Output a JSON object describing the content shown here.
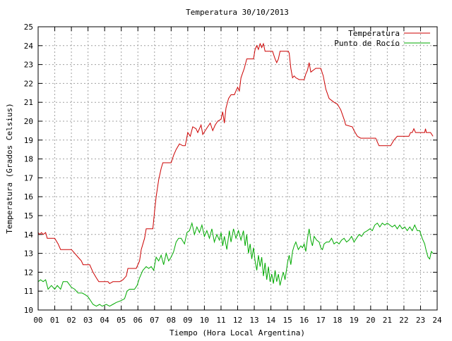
{
  "chart_data": {
    "type": "line",
    "title": "Temperatura 30/10/2013",
    "xlabel": "Tiempo (Hora Local Argentina)",
    "ylabel": "Temperatura (Grados Celsius)",
    "xlim": [
      0,
      24
    ],
    "ylim": [
      10,
      25
    ],
    "xticks": [
      "00",
      "01",
      "02",
      "03",
      "04",
      "05",
      "06",
      "07",
      "08",
      "09",
      "10",
      "11",
      "12",
      "13",
      "14",
      "15",
      "16",
      "17",
      "18",
      "19",
      "20",
      "21",
      "22",
      "23",
      "24"
    ],
    "yticks": [
      "10",
      "11",
      "12",
      "13",
      "14",
      "15",
      "16",
      "17",
      "18",
      "19",
      "20",
      "21",
      "22",
      "23",
      "24",
      "25"
    ],
    "grid": true,
    "legend_position": "top-right",
    "series": [
      {
        "name": "Temperatura",
        "color": "#cc0000",
        "points": [
          [
            0,
            14.1
          ],
          [
            0.1,
            14.0
          ],
          [
            0.2,
            14.1
          ],
          [
            0.3,
            14.0
          ],
          [
            0.45,
            14.1
          ],
          [
            0.55,
            13.8
          ],
          [
            1.0,
            13.8
          ],
          [
            1.2,
            13.5
          ],
          [
            1.35,
            13.2
          ],
          [
            2.0,
            13.2
          ],
          [
            2.2,
            13.0
          ],
          [
            2.4,
            12.8
          ],
          [
            2.6,
            12.6
          ],
          [
            2.7,
            12.4
          ],
          [
            3.1,
            12.4
          ],
          [
            3.3,
            12.0
          ],
          [
            3.5,
            11.7
          ],
          [
            3.65,
            11.5
          ],
          [
            4.2,
            11.5
          ],
          [
            4.3,
            11.4
          ],
          [
            4.5,
            11.5
          ],
          [
            4.9,
            11.5
          ],
          [
            5.1,
            11.6
          ],
          [
            5.3,
            11.8
          ],
          [
            5.4,
            12.2
          ],
          [
            5.9,
            12.2
          ],
          [
            6.1,
            12.6
          ],
          [
            6.2,
            13.2
          ],
          [
            6.4,
            13.8
          ],
          [
            6.5,
            14.3
          ],
          [
            6.9,
            14.3
          ],
          [
            7.0,
            15.2
          ],
          [
            7.1,
            16.0
          ],
          [
            7.25,
            16.9
          ],
          [
            7.4,
            17.5
          ],
          [
            7.5,
            17.8
          ],
          [
            8.0,
            17.8
          ],
          [
            8.15,
            18.2
          ],
          [
            8.3,
            18.5
          ],
          [
            8.5,
            18.8
          ],
          [
            8.7,
            18.7
          ],
          [
            8.85,
            18.7
          ],
          [
            9.0,
            19.4
          ],
          [
            9.15,
            19.2
          ],
          [
            9.3,
            19.7
          ],
          [
            9.5,
            19.6
          ],
          [
            9.6,
            19.4
          ],
          [
            9.8,
            19.8
          ],
          [
            9.9,
            19.3
          ],
          [
            10.05,
            19.5
          ],
          [
            10.2,
            19.7
          ],
          [
            10.35,
            19.9
          ],
          [
            10.5,
            19.5
          ],
          [
            10.65,
            19.8
          ],
          [
            10.8,
            20.0
          ],
          [
            11.0,
            20.1
          ],
          [
            11.1,
            20.5
          ],
          [
            11.2,
            19.9
          ],
          [
            11.3,
            20.7
          ],
          [
            11.45,
            21.2
          ],
          [
            11.6,
            21.4
          ],
          [
            11.8,
            21.4
          ],
          [
            11.9,
            21.6
          ],
          [
            12.0,
            21.8
          ],
          [
            12.1,
            21.6
          ],
          [
            12.2,
            22.3
          ],
          [
            12.4,
            22.8
          ],
          [
            12.55,
            23.3
          ],
          [
            12.95,
            23.3
          ],
          [
            13.05,
            23.8
          ],
          [
            13.15,
            24.0
          ],
          [
            13.25,
            23.8
          ],
          [
            13.35,
            24.1
          ],
          [
            13.45,
            23.9
          ],
          [
            13.55,
            24.1
          ],
          [
            13.65,
            23.7
          ],
          [
            14.1,
            23.7
          ],
          [
            14.25,
            23.3
          ],
          [
            14.35,
            23.1
          ],
          [
            14.45,
            23.3
          ],
          [
            14.55,
            23.7
          ],
          [
            15.05,
            23.7
          ],
          [
            15.1,
            23.6
          ],
          [
            15.2,
            22.8
          ],
          [
            15.3,
            22.3
          ],
          [
            15.4,
            22.4
          ],
          [
            15.5,
            22.3
          ],
          [
            15.7,
            22.2
          ],
          [
            16.0,
            22.2
          ],
          [
            16.1,
            22.5
          ],
          [
            16.2,
            22.7
          ],
          [
            16.3,
            23.1
          ],
          [
            16.4,
            22.6
          ],
          [
            16.55,
            22.7
          ],
          [
            16.7,
            22.8
          ],
          [
            17.0,
            22.8
          ],
          [
            17.15,
            22.4
          ],
          [
            17.3,
            21.7
          ],
          [
            17.5,
            21.2
          ],
          [
            17.8,
            21.0
          ],
          [
            18.0,
            20.9
          ],
          [
            18.2,
            20.6
          ],
          [
            18.4,
            20.1
          ],
          [
            18.5,
            19.8
          ],
          [
            18.9,
            19.7
          ],
          [
            19.0,
            19.5
          ],
          [
            19.2,
            19.2
          ],
          [
            19.4,
            19.1
          ],
          [
            20.3,
            19.1
          ],
          [
            20.5,
            18.7
          ],
          [
            21.2,
            18.7
          ],
          [
            21.4,
            19.0
          ],
          [
            21.6,
            19.2
          ],
          [
            22.3,
            19.2
          ],
          [
            22.4,
            19.4
          ],
          [
            22.5,
            19.4
          ],
          [
            22.6,
            19.6
          ],
          [
            22.7,
            19.4
          ],
          [
            23.25,
            19.4
          ],
          [
            23.3,
            19.6
          ],
          [
            23.35,
            19.4
          ],
          [
            23.6,
            19.4
          ],
          [
            23.75,
            19.2
          ]
        ]
      },
      {
        "name": "Punto de Rocío",
        "color": "#00aa00",
        "points": [
          [
            0,
            11.5
          ],
          [
            0.15,
            11.6
          ],
          [
            0.3,
            11.5
          ],
          [
            0.45,
            11.6
          ],
          [
            0.6,
            11.1
          ],
          [
            0.8,
            11.3
          ],
          [
            1.0,
            11.1
          ],
          [
            1.15,
            11.3
          ],
          [
            1.35,
            11.1
          ],
          [
            1.5,
            11.5
          ],
          [
            1.75,
            11.5
          ],
          [
            2.0,
            11.2
          ],
          [
            2.2,
            11.1
          ],
          [
            2.4,
            10.9
          ],
          [
            2.65,
            10.9
          ],
          [
            2.85,
            10.8
          ],
          [
            3.0,
            10.7
          ],
          [
            3.15,
            10.5
          ],
          [
            3.3,
            10.3
          ],
          [
            3.5,
            10.2
          ],
          [
            3.7,
            10.3
          ],
          [
            3.85,
            10.2
          ],
          [
            4.1,
            10.3
          ],
          [
            4.3,
            10.2
          ],
          [
            4.5,
            10.3
          ],
          [
            4.7,
            10.4
          ],
          [
            5.0,
            10.5
          ],
          [
            5.2,
            10.6
          ],
          [
            5.35,
            11.0
          ],
          [
            5.5,
            11.1
          ],
          [
            5.8,
            11.1
          ],
          [
            5.95,
            11.3
          ],
          [
            6.1,
            11.7
          ],
          [
            6.3,
            12.1
          ],
          [
            6.5,
            12.3
          ],
          [
            6.65,
            12.2
          ],
          [
            6.8,
            12.3
          ],
          [
            6.95,
            12.1
          ],
          [
            7.1,
            12.8
          ],
          [
            7.25,
            12.6
          ],
          [
            7.4,
            12.9
          ],
          [
            7.55,
            12.4
          ],
          [
            7.7,
            13.0
          ],
          [
            7.85,
            12.6
          ],
          [
            8.0,
            12.8
          ],
          [
            8.15,
            13.1
          ],
          [
            8.3,
            13.6
          ],
          [
            8.45,
            13.8
          ],
          [
            8.6,
            13.8
          ],
          [
            8.8,
            13.5
          ],
          [
            8.95,
            14.1
          ],
          [
            9.1,
            14.2
          ],
          [
            9.25,
            14.6
          ],
          [
            9.4,
            14.0
          ],
          [
            9.55,
            14.4
          ],
          [
            9.7,
            14.1
          ],
          [
            9.85,
            14.5
          ],
          [
            10.0,
            13.9
          ],
          [
            10.15,
            14.2
          ],
          [
            10.3,
            13.8
          ],
          [
            10.45,
            14.3
          ],
          [
            10.6,
            13.6
          ],
          [
            10.75,
            14.0
          ],
          [
            10.9,
            13.7
          ],
          [
            11.0,
            14.1
          ],
          [
            11.1,
            13.4
          ],
          [
            11.2,
            13.9
          ],
          [
            11.35,
            13.2
          ],
          [
            11.5,
            14.2
          ],
          [
            11.6,
            13.6
          ],
          [
            11.75,
            14.3
          ],
          [
            11.9,
            13.8
          ],
          [
            12.05,
            14.2
          ],
          [
            12.2,
            13.7
          ],
          [
            12.35,
            14.2
          ],
          [
            12.45,
            13.4
          ],
          [
            12.55,
            14.0
          ],
          [
            12.65,
            13.0
          ],
          [
            12.75,
            13.5
          ],
          [
            12.85,
            12.7
          ],
          [
            12.95,
            13.3
          ],
          [
            13.05,
            12.6
          ],
          [
            13.15,
            12.1
          ],
          [
            13.25,
            12.9
          ],
          [
            13.35,
            12.3
          ],
          [
            13.45,
            12.8
          ],
          [
            13.55,
            11.8
          ],
          [
            13.65,
            12.5
          ],
          [
            13.75,
            11.6
          ],
          [
            13.85,
            12.3
          ],
          [
            13.95,
            11.5
          ],
          [
            14.05,
            11.9
          ],
          [
            14.15,
            11.4
          ],
          [
            14.25,
            12.1
          ],
          [
            14.35,
            11.5
          ],
          [
            14.45,
            11.9
          ],
          [
            14.55,
            11.3
          ],
          [
            14.65,
            11.7
          ],
          [
            14.75,
            12.0
          ],
          [
            14.85,
            11.6
          ],
          [
            15.0,
            12.5
          ],
          [
            15.1,
            12.9
          ],
          [
            15.2,
            12.4
          ],
          [
            15.3,
            13.1
          ],
          [
            15.4,
            13.4
          ],
          [
            15.5,
            13.6
          ],
          [
            15.65,
            13.2
          ],
          [
            15.8,
            13.4
          ],
          [
            15.9,
            13.3
          ],
          [
            16.0,
            13.5
          ],
          [
            16.1,
            13.1
          ],
          [
            16.2,
            13.8
          ],
          [
            16.3,
            14.3
          ],
          [
            16.4,
            13.7
          ],
          [
            16.5,
            13.4
          ],
          [
            16.6,
            13.9
          ],
          [
            16.75,
            13.7
          ],
          [
            16.9,
            13.6
          ],
          [
            17.0,
            13.3
          ],
          [
            17.1,
            13.2
          ],
          [
            17.2,
            13.5
          ],
          [
            17.35,
            13.6
          ],
          [
            17.5,
            13.6
          ],
          [
            17.65,
            13.8
          ],
          [
            17.8,
            13.5
          ],
          [
            17.95,
            13.6
          ],
          [
            18.1,
            13.5
          ],
          [
            18.25,
            13.7
          ],
          [
            18.4,
            13.8
          ],
          [
            18.55,
            13.6
          ],
          [
            18.7,
            13.7
          ],
          [
            18.85,
            13.9
          ],
          [
            19.0,
            13.6
          ],
          [
            19.15,
            13.8
          ],
          [
            19.3,
            14.0
          ],
          [
            19.45,
            13.9
          ],
          [
            19.6,
            14.1
          ],
          [
            19.8,
            14.2
          ],
          [
            19.95,
            14.3
          ],
          [
            20.1,
            14.2
          ],
          [
            20.25,
            14.5
          ],
          [
            20.4,
            14.6
          ],
          [
            20.55,
            14.4
          ],
          [
            20.7,
            14.6
          ],
          [
            20.85,
            14.5
          ],
          [
            21.0,
            14.6
          ],
          [
            21.15,
            14.5
          ],
          [
            21.3,
            14.4
          ],
          [
            21.45,
            14.5
          ],
          [
            21.6,
            14.3
          ],
          [
            21.75,
            14.5
          ],
          [
            21.9,
            14.3
          ],
          [
            22.05,
            14.4
          ],
          [
            22.2,
            14.2
          ],
          [
            22.35,
            14.4
          ],
          [
            22.5,
            14.2
          ],
          [
            22.65,
            14.5
          ],
          [
            22.8,
            14.2
          ],
          [
            22.95,
            14.2
          ],
          [
            23.1,
            13.8
          ],
          [
            23.25,
            13.5
          ],
          [
            23.35,
            13.1
          ],
          [
            23.45,
            12.8
          ],
          [
            23.55,
            12.7
          ],
          [
            23.65,
            13.1
          ],
          [
            23.75,
            13.0
          ]
        ]
      }
    ]
  }
}
